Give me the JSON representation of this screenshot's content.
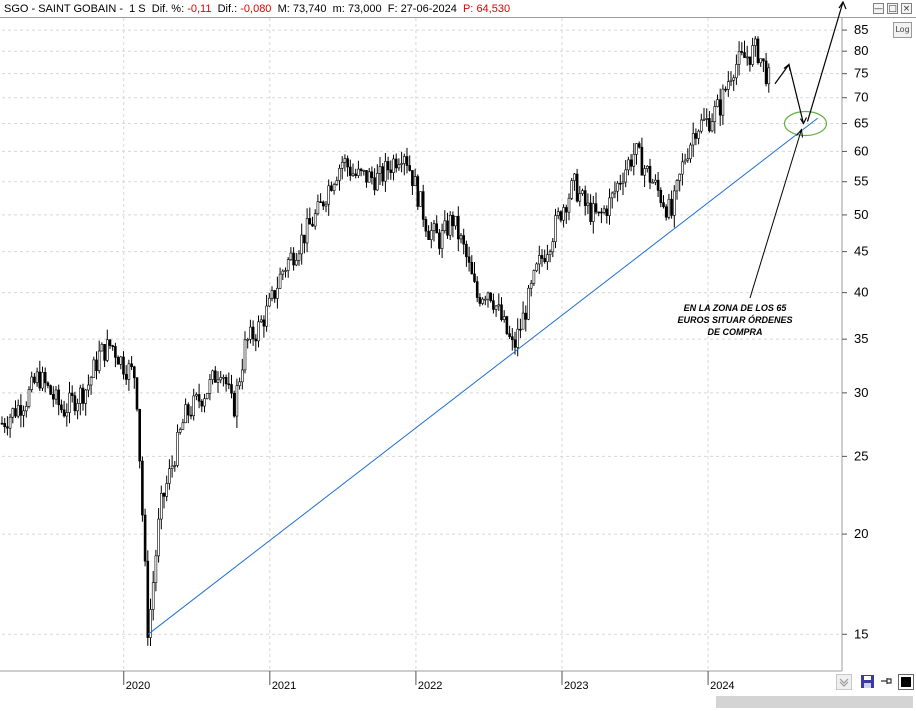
{
  "header": {
    "ticker": "SGO - SAINT GOBAIN",
    "period": "1 S",
    "difpct_label": "Dif. %:",
    "difpct_value": "-0,11",
    "dif_label": "Dif.:",
    "dif_value": "-0,080",
    "m_label": "M:",
    "m_value": "73,740",
    "min_label": "m:",
    "min_value": "73,000",
    "f_label": "F:",
    "f_value": "27-06-2024",
    "p_label": "P:",
    "p_value": "64,530"
  },
  "controls": {
    "log_label": "Log",
    "minimize_icon": "minimize-icon",
    "maximize_icon": "maximize-icon",
    "close_icon": "close-icon"
  },
  "annotation": {
    "text_lines": [
      "EN LA ZONA DE LOS 65",
      "EUROS SITUAR ÓRDENES",
      "DE COMPRA"
    ]
  },
  "colors": {
    "negative": "#e00000",
    "trendline": "#1f6fd0",
    "ellipse": "#5fb040",
    "candle": "#000000",
    "grid": "#d8d8d8"
  },
  "chart_data": {
    "type": "candlestick",
    "title": "SGO - SAINT GOBAIN",
    "scale": "log",
    "ylim": [
      13.5,
      88
    ],
    "y_ticks": [
      15,
      20,
      25,
      30,
      35,
      40,
      45,
      50,
      55,
      60,
      65,
      70,
      75,
      80,
      85
    ],
    "x_ticks": [
      "2020",
      "2021",
      "2022",
      "2023",
      "2024"
    ],
    "x_range": [
      "2019-03",
      "2024-12"
    ],
    "grid": true,
    "series": [
      {
        "points": [
          [
            "2019-03",
            27.5
          ],
          [
            "2019-05",
            29.5
          ],
          [
            "2019-06",
            31.5
          ],
          [
            "2019-08",
            28.5
          ],
          [
            "2019-10",
            30.5
          ],
          [
            "2019-11",
            33.5
          ],
          [
            "2019-12",
            34.5
          ],
          [
            "2020-01",
            32.5
          ],
          [
            "2020-02",
            31.5
          ],
          [
            "2020-03",
            15.0
          ],
          [
            "2020-04",
            21.5
          ],
          [
            "2020-05",
            24.5
          ],
          [
            "2020-06",
            28.0
          ],
          [
            "2020-08",
            30.5
          ],
          [
            "2020-09",
            32.5
          ],
          [
            "2020-10",
            28.5
          ],
          [
            "2020-11",
            34.5
          ],
          [
            "2020-12",
            36.0
          ],
          [
            "2021-01",
            38.5
          ],
          [
            "2021-02",
            42.5
          ],
          [
            "2021-03",
            45.0
          ],
          [
            "2021-05",
            50.5
          ],
          [
            "2021-06",
            55.0
          ],
          [
            "2021-07",
            58.5
          ],
          [
            "2021-08",
            56.0
          ],
          [
            "2021-10",
            55.5
          ],
          [
            "2021-12",
            60.5
          ],
          [
            "2022-01",
            54.0
          ],
          [
            "2022-02",
            48.0
          ],
          [
            "2022-03",
            46.5
          ],
          [
            "2022-04",
            49.5
          ],
          [
            "2022-05",
            45.0
          ],
          [
            "2022-06",
            39.5
          ],
          [
            "2022-07",
            40.5
          ],
          [
            "2022-09",
            34.0
          ],
          [
            "2022-10",
            38.0
          ],
          [
            "2022-11",
            43.0
          ],
          [
            "2022-12",
            46.5
          ],
          [
            "2023-01",
            51.0
          ],
          [
            "2023-02",
            54.5
          ],
          [
            "2023-03",
            51.0
          ],
          [
            "2023-04",
            49.5
          ],
          [
            "2023-05",
            52.0
          ],
          [
            "2023-06",
            56.5
          ],
          [
            "2023-07",
            60.0
          ],
          [
            "2023-08",
            56.5
          ],
          [
            "2023-10",
            50.0
          ],
          [
            "2023-11",
            58.5
          ],
          [
            "2023-12",
            64.5
          ],
          [
            "2024-01",
            65.5
          ],
          [
            "2024-02",
            68.5
          ],
          [
            "2024-03",
            76.5
          ],
          [
            "2024-04",
            78.5
          ],
          [
            "2024-05",
            80.5
          ],
          [
            "2024-06",
            73.7
          ]
        ]
      }
    ],
    "trendline": {
      "from": [
        "2020-03",
        15.0
      ],
      "to": [
        "2024-10",
        66.0
      ]
    },
    "annotation_target": {
      "date": "2024-09",
      "value": 65
    }
  }
}
